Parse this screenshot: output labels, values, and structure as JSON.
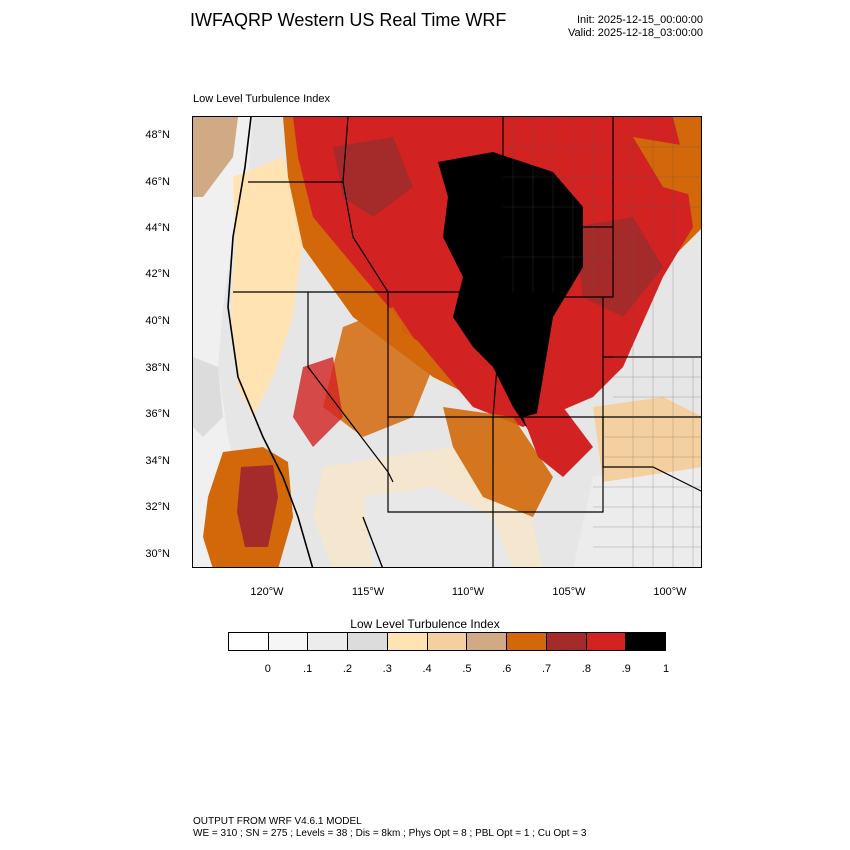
{
  "header": {
    "title": "IWFAQRP Western US Real Time WRF",
    "init": "Init: 2025-12-15_00:00:00",
    "valid": "Valid: 2025-12-18_03:00:00"
  },
  "map": {
    "field_label": "Low Level Turbulence Index",
    "lat_labels": [
      "48°N",
      "46°N",
      "44°N",
      "42°N",
      "40°N",
      "38°N",
      "36°N",
      "34°N",
      "32°N",
      "30°N"
    ],
    "lon_labels": [
      "120°W",
      "115°W",
      "110°W",
      "105°W",
      "100°W"
    ]
  },
  "colorbar": {
    "title": "Low Level Turbulence Index",
    "colors": [
      "#ffffff",
      "#f6f6f6",
      "#ececec",
      "#dcdcdc",
      "#ffe3b3",
      "#f4d0a0",
      "#d0aa84",
      "#d2680a",
      "#a52a2a",
      "#d22222",
      "#000000"
    ],
    "labels": [
      "0",
      ".1",
      ".2",
      ".3",
      ".4",
      ".5",
      ".6",
      ".7",
      ".8",
      ".9",
      "1"
    ]
  },
  "footer": {
    "line1": "OUTPUT FROM WRF V4.6.1 MODEL",
    "line2": "WE = 310 ; SN = 275 ; Levels = 38 ; Dis = 8km ; Phys Opt = 8 ; PBL Opt = 1 ; Cu Opt = 3"
  }
}
